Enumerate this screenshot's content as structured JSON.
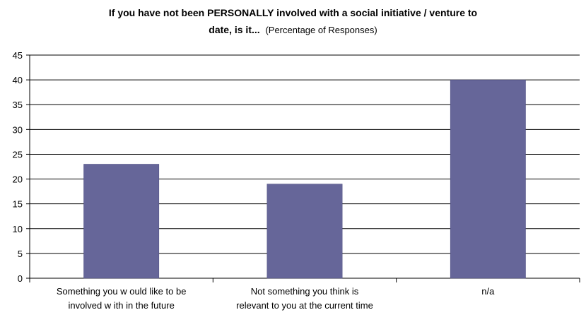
{
  "chart_data": {
    "type": "bar",
    "title_bold_line1": "If you have not been PERSONALLY involved with a social initiative / venture to",
    "title_bold_line2": "date, is it...",
    "title_suffix": "(Percentage of Responses)",
    "categories": [
      [
        "Something you w ould like to be",
        "involved w ith in the future"
      ],
      [
        "Not something you think is",
        "relevant to you at the current time"
      ],
      [
        "n/a"
      ]
    ],
    "values": [
      23,
      19,
      40
    ],
    "ylim": [
      0,
      45
    ],
    "yticks": [
      0,
      5,
      10,
      15,
      20,
      25,
      30,
      35,
      40,
      45
    ],
    "grid": true,
    "bar_color": "#666699",
    "xlabel": "",
    "ylabel": ""
  }
}
